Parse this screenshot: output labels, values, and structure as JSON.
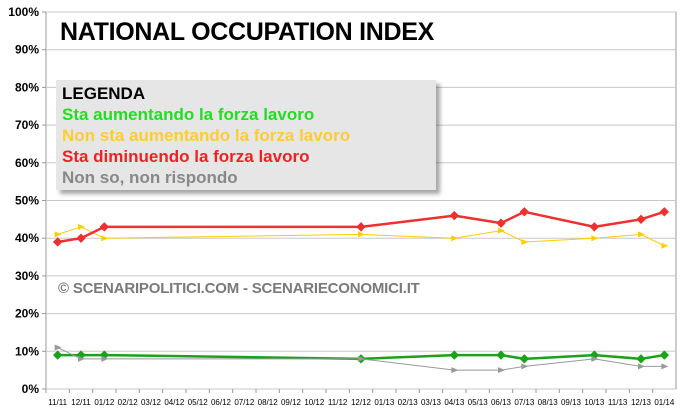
{
  "chart_data": {
    "type": "line",
    "title": "NATIONAL OCCUPATION INDEX",
    "legend_title": "LEGENDA",
    "watermark": "© SCENARIPOLITICI.COM - SCENARIECONOMICI.IT",
    "ylim": [
      0,
      100
    ],
    "y_ticks": [
      "0%",
      "10%",
      "20%",
      "30%",
      "40%",
      "50%",
      "60%",
      "70%",
      "80%",
      "90%",
      "100%"
    ],
    "categories": [
      "11/11",
      "12/11",
      "01/12",
      "02/12",
      "03/12",
      "04/12",
      "05/12",
      "06/12",
      "07/12",
      "08/12",
      "09/12",
      "10/12",
      "11/12",
      "12/12",
      "01/13",
      "02/13",
      "03/13",
      "04/13",
      "05/13",
      "06/13",
      "07/13",
      "08/13",
      "09/13",
      "10/13",
      "11/13",
      "12/13",
      "01/14"
    ],
    "grid": true,
    "legend_position": "top-left",
    "series": [
      {
        "name": "Sta aumentando la forza lavoro",
        "color": "#1aa31a",
        "marker": "diamond",
        "width": 2.5,
        "points": [
          [
            0,
            9
          ],
          [
            1,
            9
          ],
          [
            2,
            9
          ],
          [
            13,
            8
          ],
          [
            17,
            9
          ],
          [
            19,
            9
          ],
          [
            20,
            8
          ],
          [
            23,
            9
          ],
          [
            25,
            8
          ],
          [
            26,
            9
          ]
        ]
      },
      {
        "name": "Non sta aumentando la forza lavoro",
        "color": "#ffcc00",
        "marker": "triangle",
        "width": 1,
        "points": [
          [
            0,
            41
          ],
          [
            1,
            43
          ],
          [
            2,
            40
          ],
          [
            13,
            41
          ],
          [
            17,
            40
          ],
          [
            19,
            42
          ],
          [
            20,
            39
          ],
          [
            23,
            40
          ],
          [
            25,
            41
          ],
          [
            26,
            38
          ]
        ]
      },
      {
        "name": "Sta diminuendo la forza lavoro",
        "color": "#ee3030",
        "marker": "diamond",
        "width": 2.5,
        "points": [
          [
            0,
            39
          ],
          [
            1,
            40
          ],
          [
            2,
            43
          ],
          [
            13,
            43
          ],
          [
            17,
            46
          ],
          [
            19,
            44
          ],
          [
            20,
            47
          ],
          [
            23,
            43
          ],
          [
            25,
            45
          ],
          [
            26,
            47
          ]
        ]
      },
      {
        "name": "Non so, non rispondo",
        "color": "#999999",
        "marker": "triangle",
        "width": 1,
        "points": [
          [
            0,
            11
          ],
          [
            1,
            8
          ],
          [
            2,
            8
          ],
          [
            13,
            8
          ],
          [
            17,
            5
          ],
          [
            19,
            5
          ],
          [
            20,
            6
          ],
          [
            23,
            8
          ],
          [
            25,
            6
          ],
          [
            26,
            6
          ]
        ]
      }
    ],
    "legend_colors": [
      "#22dd22",
      "#ffcc33",
      "#ee2222",
      "#888888"
    ]
  }
}
